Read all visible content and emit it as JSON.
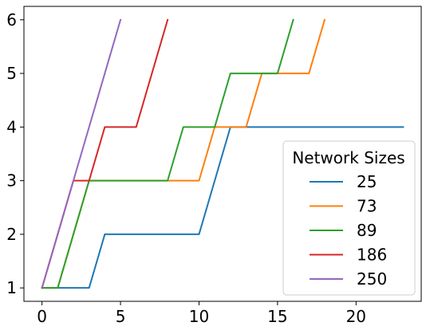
{
  "chart_data": {
    "type": "line",
    "title": "",
    "xlabel": "",
    "ylabel": "",
    "xlim": [
      -1.15,
      24.15
    ],
    "ylim": [
      0.75,
      6.25
    ],
    "xticks": [
      0,
      5,
      10,
      15,
      20
    ],
    "yticks": [
      1,
      2,
      3,
      4,
      5,
      6
    ],
    "grid": false,
    "legend": {
      "title": "Network Sizes",
      "placement": "lower-right"
    },
    "series": [
      {
        "name": "25",
        "color": "#1f77b4",
        "x": [
          0,
          1,
          2,
          3,
          4,
          5,
          6,
          7,
          8,
          9,
          10,
          11,
          12,
          13,
          14,
          15,
          16,
          17,
          18,
          19,
          20,
          21,
          22,
          23
        ],
        "y": [
          1,
          1,
          1,
          1,
          2,
          2,
          2,
          2,
          2,
          2,
          2,
          3,
          4,
          4,
          4,
          4,
          4,
          4,
          4,
          4,
          4,
          4,
          4,
          4
        ]
      },
      {
        "name": "73",
        "color": "#ff7f0e",
        "x": [
          0,
          1,
          2,
          3,
          4,
          5,
          6,
          7,
          8,
          9,
          10,
          11,
          12,
          13,
          14,
          15,
          16,
          17,
          18
        ],
        "y": [
          1,
          1,
          2,
          3,
          3,
          3,
          3,
          3,
          3,
          3,
          3,
          4,
          4,
          4,
          5,
          5,
          5,
          5,
          6
        ]
      },
      {
        "name": "89",
        "color": "#2ca02c",
        "x": [
          0,
          1,
          2,
          3,
          4,
          5,
          6,
          7,
          8,
          9,
          10,
          11,
          12,
          13,
          14,
          15,
          16
        ],
        "y": [
          1,
          1,
          2,
          3,
          3,
          3,
          3,
          3,
          3,
          4,
          4,
          4,
          5,
          5,
          5,
          5,
          6
        ]
      },
      {
        "name": "186",
        "color": "#d62728",
        "x": [
          0,
          1,
          2,
          3,
          4,
          5,
          6,
          7,
          8
        ],
        "y": [
          1,
          2,
          3,
          3,
          4,
          4,
          4,
          5,
          6
        ]
      },
      {
        "name": "250",
        "color": "#9467bd",
        "x": [
          0,
          1,
          2,
          3,
          4,
          5
        ],
        "y": [
          1,
          2,
          3,
          4,
          5,
          6
        ]
      }
    ]
  }
}
